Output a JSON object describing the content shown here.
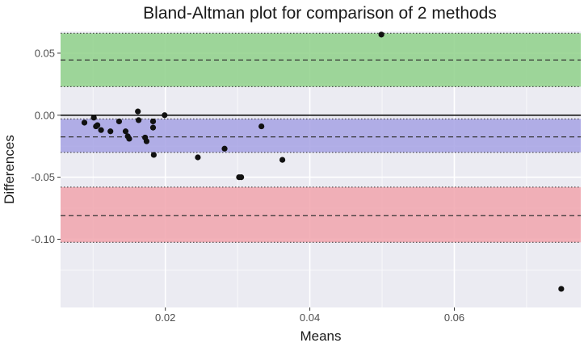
{
  "chart_data": {
    "type": "scatter",
    "title": "Bland-Altman plot for comparison of 2 methods",
    "xlabel": "Means",
    "ylabel": "Differences",
    "xlim": [
      0.0055,
      0.0775
    ],
    "ylim": [
      -0.155,
      0.0675
    ],
    "x_ticks": [
      0.02,
      0.04,
      0.06
    ],
    "x_tick_labels": [
      "0.02",
      "0.04",
      "0.06"
    ],
    "x_minor_ticks": [
      0.01,
      0.03,
      0.05,
      0.07
    ],
    "y_ticks": [
      0.05,
      0.0,
      -0.05,
      -0.1
    ],
    "y_tick_labels": [
      "0.05",
      "0.00",
      "-0.05",
      "-0.10"
    ],
    "y_minor_ticks": [
      0.025,
      -0.025,
      -0.075,
      -0.125
    ],
    "bands": [
      {
        "name": "upper-limit-of-agreement",
        "ymin": 0.023,
        "ymax": 0.066,
        "center": 0.0445,
        "color": "#8fd18a"
      },
      {
        "name": "mean-difference",
        "ymin": -0.03,
        "ymax": -0.003,
        "center": -0.0175,
        "color": "#a6a2e4"
      },
      {
        "name": "lower-limit-of-agreement",
        "ymin": -0.1025,
        "ymax": -0.058,
        "center": -0.081,
        "color": "#f1a5ad"
      }
    ],
    "zero_line": 0,
    "colors": {
      "panel": "#ebebf2",
      "grid": "#ffffff",
      "point": "#111111",
      "dashed": "#333333"
    },
    "points": [
      {
        "x": 0.0088,
        "y": -0.006
      },
      {
        "x": 0.0101,
        "y": -0.002
      },
      {
        "x": 0.0104,
        "y": -0.009
      },
      {
        "x": 0.0106,
        "y": -0.008
      },
      {
        "x": 0.0111,
        "y": -0.012
      },
      {
        "x": 0.0124,
        "y": -0.013
      },
      {
        "x": 0.0136,
        "y": -0.005
      },
      {
        "x": 0.0145,
        "y": -0.013
      },
      {
        "x": 0.0148,
        "y": -0.017
      },
      {
        "x": 0.015,
        "y": -0.019
      },
      {
        "x": 0.0162,
        "y": 0.003
      },
      {
        "x": 0.0163,
        "y": -0.004
      },
      {
        "x": 0.0172,
        "y": -0.018
      },
      {
        "x": 0.0174,
        "y": -0.021
      },
      {
        "x": 0.0183,
        "y": -0.005
      },
      {
        "x": 0.0183,
        "y": -0.01
      },
      {
        "x": 0.0184,
        "y": -0.032
      },
      {
        "x": 0.0199,
        "y": 0.0
      },
      {
        "x": 0.0245,
        "y": -0.034
      },
      {
        "x": 0.0282,
        "y": -0.027
      },
      {
        "x": 0.0302,
        "y": -0.05
      },
      {
        "x": 0.0305,
        "y": -0.05
      },
      {
        "x": 0.0333,
        "y": -0.009
      },
      {
        "x": 0.0362,
        "y": -0.036
      },
      {
        "x": 0.0499,
        "y": 0.065
      },
      {
        "x": 0.0748,
        "y": -0.14
      }
    ]
  }
}
